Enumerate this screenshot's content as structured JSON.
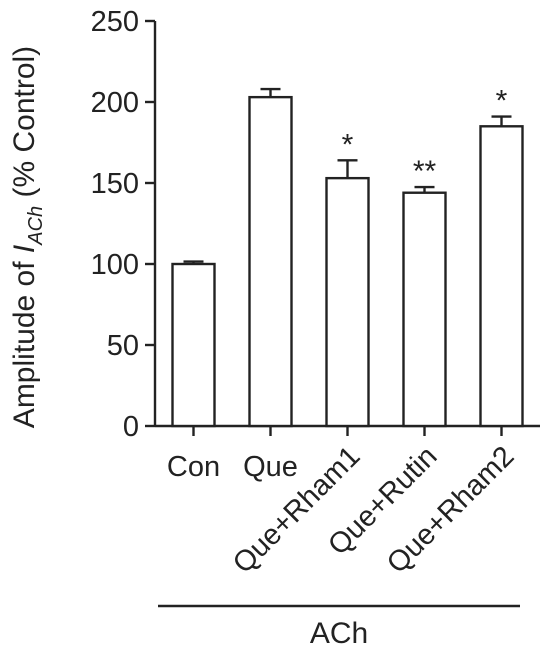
{
  "chart_data": {
    "type": "bar",
    "categories": [
      "Con",
      "Que",
      "Que+Rham1",
      "Que+Rutin",
      "Que+Rham2"
    ],
    "values": [
      100,
      203,
      153,
      144,
      185
    ],
    "errors": [
      1.5,
      5,
      11,
      3.5,
      6
    ],
    "significance": [
      "",
      "",
      "*",
      "**",
      "*"
    ],
    "ylabel": {
      "main": "Amplitude of ",
      "italic": "I",
      "subscript": "ACh",
      "suffix": " (% Control)"
    },
    "ylim": [
      0,
      250
    ],
    "yticks": [
      0,
      50,
      100,
      150,
      200,
      250
    ],
    "group_label": "ACh",
    "grid": false,
    "colors": {
      "bar_fill": "#ffffff",
      "stroke": "#222222"
    }
  }
}
